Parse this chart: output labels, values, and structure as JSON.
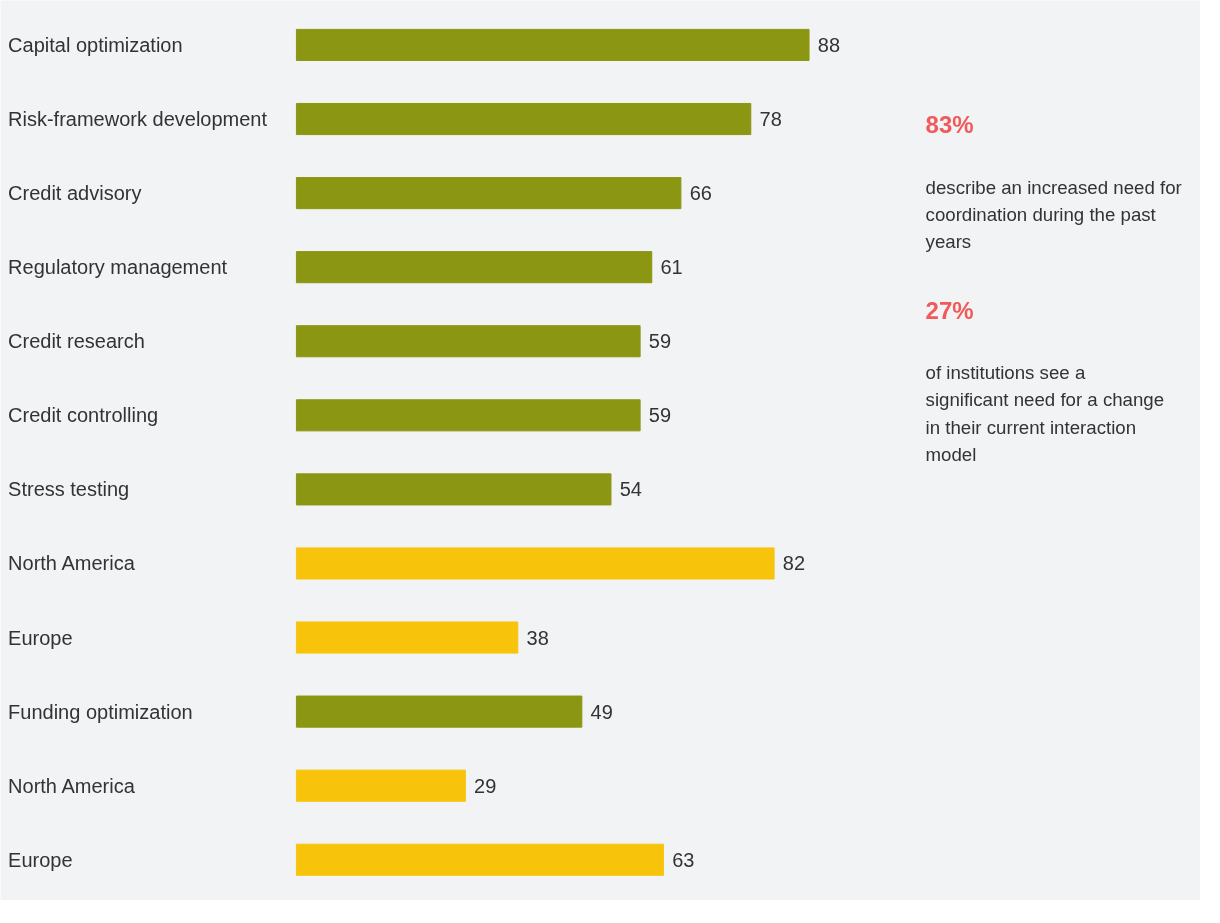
{
  "chart_data": {
    "type": "bar",
    "orientation": "horizontal",
    "data_labels": true,
    "categories": [
      "Capital optimization",
      "Risk-framework development",
      "Credit advisory",
      "Regulatory management",
      "Credit research",
      "Credit controlling",
      "Stress testing",
      "North America",
      "Europe",
      "Funding optimization",
      "North America",
      "Europe"
    ],
    "values": [
      88,
      78,
      66,
      61,
      59,
      59,
      54,
      82,
      38,
      49,
      29,
      63
    ],
    "colors": [
      "#8b9612",
      "#8b9612",
      "#8b9612",
      "#8b9612",
      "#8b9612",
      "#8b9612",
      "#8b9612",
      "#f7c40b",
      "#f7c40b",
      "#8b9612",
      "#f7c40b",
      "#f7c40b"
    ],
    "annotations": [
      "83%",
      "describe an increased need for coordination during the past years",
      "27%",
      "of institutions see a significant need for a change in their current interaction model"
    ]
  }
}
